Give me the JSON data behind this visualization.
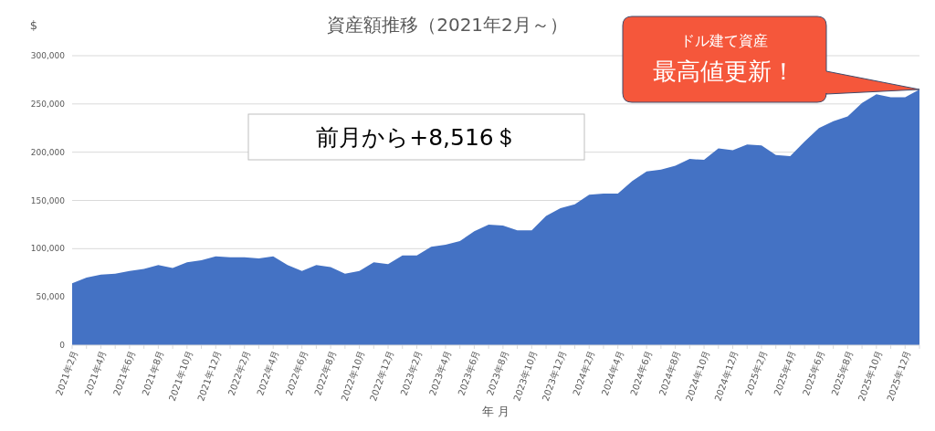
{
  "chart_data": {
    "type": "area",
    "title": "資産額推移（2021年2月～）",
    "ylabel": "$",
    "xlabel": "年 月",
    "annotations": [
      "前月から+8,516＄",
      "ドル建て資産",
      "最高値更新！"
    ],
    "categories": [
      "2021年2月",
      null,
      "2021年4月",
      null,
      "2021年6月",
      null,
      "2021年8月",
      null,
      "2021年10月",
      null,
      "2021年12月",
      null,
      "2022年2月",
      null,
      "2022年4月",
      null,
      "2022年6月",
      null,
      "2022年8月",
      null,
      "2022年10月",
      null,
      "2022年12月",
      null,
      "2023年2月",
      null,
      "2023年4月",
      null,
      "2023年6月",
      null,
      "2023年8月",
      null,
      "2023年10月",
      null,
      "2023年12月",
      null,
      "2024年2月",
      null,
      "2024年4月",
      null,
      "2024年6月",
      null,
      "2024年8月",
      null,
      "2024年10月",
      null,
      "2024年12月",
      null,
      "2025年2月",
      null,
      "2025年4月",
      null,
      "2025年6月",
      null,
      "2025年8月",
      null,
      "2025年10月",
      null,
      "2025年12月",
      null
    ],
    "series": [
      {
        "color": "#4472c4",
        "values": [
          64000,
          70000,
          73000,
          74000,
          77000,
          79000,
          83000,
          80000,
          86000,
          88000,
          92000,
          91000,
          91000,
          90000,
          92000,
          83000,
          77000,
          83000,
          81000,
          74000,
          77000,
          86000,
          84000,
          93000,
          93000,
          102000,
          104000,
          108000,
          118000,
          125000,
          124000,
          119000,
          119000,
          134000,
          142000,
          146000,
          156000,
          157000,
          157000,
          170000,
          180000,
          182000,
          186000,
          193000,
          192000,
          204000,
          202000,
          208000,
          207000,
          197000,
          196000,
          211000,
          225000,
          232000,
          237000,
          251000,
          260000,
          257000,
          257000,
          265000
        ]
      }
    ],
    "ylim": [
      0,
      300000
    ],
    "yticks": [
      0,
      {
        "value": 50000,
        "label": "50,000"
      },
      {
        "value": 100000,
        "label": "100,000"
      },
      {
        "value": 150000,
        "label": "150,000"
      },
      {
        "value": 200000,
        "label": "200,000"
      },
      {
        "value": 250000,
        "label": "250,000"
      },
      {
        "value": 300000,
        "label": "300,000"
      }
    ],
    "grid": "y"
  }
}
